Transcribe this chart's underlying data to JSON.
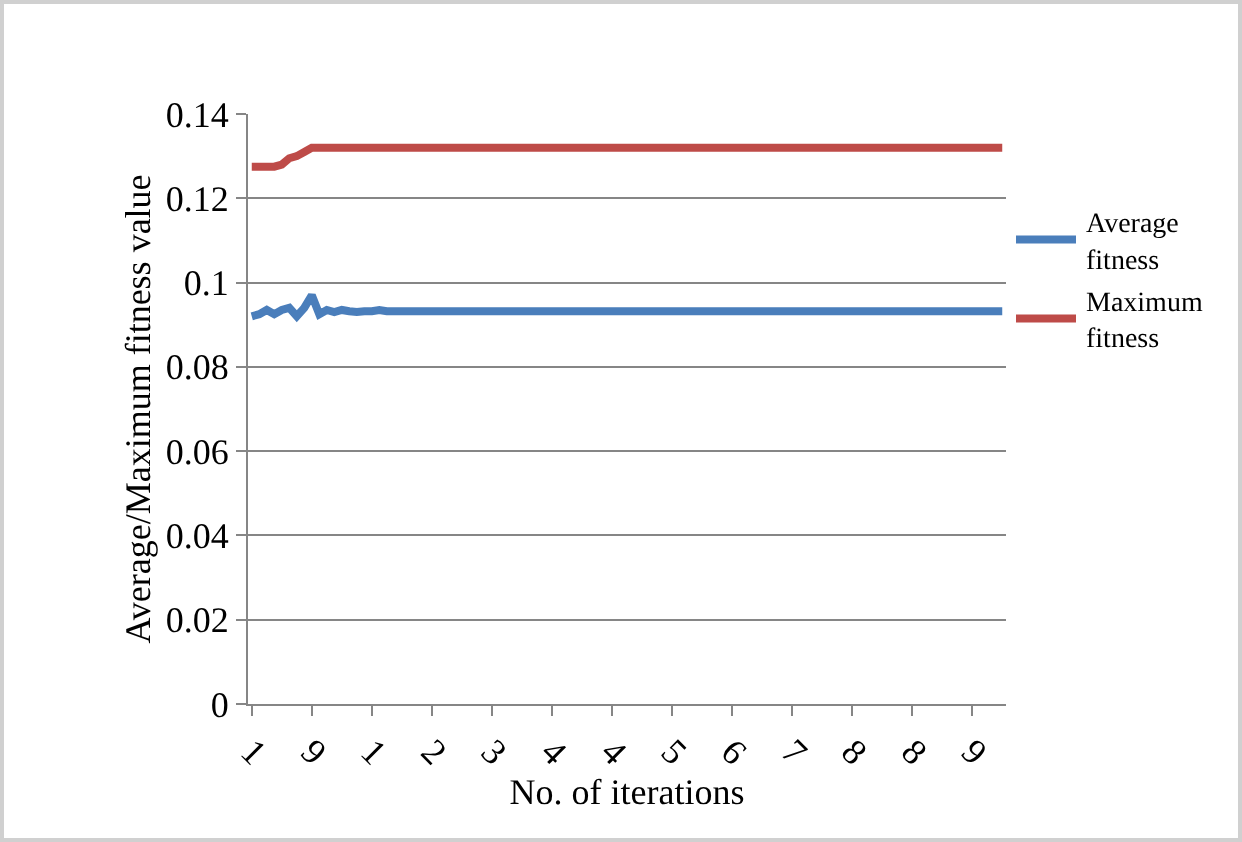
{
  "chart_data": {
    "type": "line",
    "xlabel": "No. of iterations",
    "ylabel": "Average/Maximum fitness value",
    "categories": [
      "1",
      null,
      null,
      null,
      null,
      null,
      null,
      null,
      "9",
      null,
      null,
      null,
      null,
      null,
      null,
      null,
      "1",
      null,
      null,
      null,
      null,
      null,
      null,
      null,
      "2",
      null,
      null,
      null,
      null,
      null,
      null,
      null,
      "3",
      null,
      null,
      null,
      null,
      null,
      null,
      null,
      "4",
      null,
      null,
      null,
      null,
      null,
      null,
      null,
      "4",
      null,
      null,
      null,
      null,
      null,
      null,
      null,
      "5",
      null,
      null,
      null,
      null,
      null,
      null,
      null,
      "6",
      null,
      null,
      null,
      null,
      null,
      null,
      null,
      "7",
      null,
      null,
      null,
      null,
      null,
      null,
      null,
      "8",
      null,
      null,
      null,
      null,
      null,
      null,
      null,
      "8",
      null,
      null,
      null,
      null,
      null,
      null,
      null,
      "9",
      null,
      null,
      null,
      null
    ],
    "ylim": [
      0,
      0.14
    ],
    "yticks": [
      0,
      0.02,
      0.04,
      0.06,
      0.08,
      0.1,
      0.12,
      0.14
    ],
    "grid": "y",
    "legend": "right",
    "marker": "none",
    "line_style": "solid",
    "series": [
      {
        "name": "Average fitness",
        "color": "#4a7ebb",
        "values": [
          0.092,
          0.0925,
          0.0935,
          0.0925,
          0.0935,
          0.094,
          0.092,
          0.094,
          0.097,
          0.0925,
          0.0935,
          0.093,
          0.0935,
          0.0932,
          0.093,
          0.0932,
          0.0932,
          0.0935,
          0.0932,
          0.0932,
          0.0932,
          0.0932,
          0.0932,
          0.0932,
          0.0932,
          0.0932,
          0.0932,
          0.0932,
          0.0932,
          0.0932,
          0.0932,
          0.0932,
          0.0932,
          0.0932,
          0.0932,
          0.0932,
          0.0932,
          0.0932,
          0.0932,
          0.0932,
          0.0932,
          0.0932,
          0.0932,
          0.0932,
          0.0932,
          0.0932,
          0.0932,
          0.0932,
          0.0932,
          0.0932,
          0.0932,
          0.0932,
          0.0932,
          0.0932,
          0.0932,
          0.0932,
          0.0932,
          0.0932,
          0.0932,
          0.0932,
          0.0932,
          0.0932,
          0.0932,
          0.0932,
          0.0932,
          0.0932,
          0.0932,
          0.0932,
          0.0932,
          0.0932,
          0.0932,
          0.0932,
          0.0932,
          0.0932,
          0.0932,
          0.0932,
          0.0932,
          0.0932,
          0.0932,
          0.0932,
          0.0932,
          0.0932,
          0.0932,
          0.0932,
          0.0932,
          0.0932,
          0.0932,
          0.0932,
          0.0932,
          0.0932,
          0.0932,
          0.0932,
          0.0932,
          0.0932,
          0.0932,
          0.0932,
          0.0932,
          0.0932,
          0.0932,
          0.0932,
          0.0932
        ]
      },
      {
        "name": "Maximum fitness",
        "color": "#be4b48",
        "values": [
          0.1275,
          0.1275,
          0.1275,
          0.1275,
          0.128,
          0.1295,
          0.13,
          0.131,
          0.132,
          0.132,
          0.132,
          0.132,
          0.132,
          0.132,
          0.132,
          0.132,
          0.132,
          0.132,
          0.132,
          0.132,
          0.132,
          0.132,
          0.132,
          0.132,
          0.132,
          0.132,
          0.132,
          0.132,
          0.132,
          0.132,
          0.132,
          0.132,
          0.132,
          0.132,
          0.132,
          0.132,
          0.132,
          0.132,
          0.132,
          0.132,
          0.132,
          0.132,
          0.132,
          0.132,
          0.132,
          0.132,
          0.132,
          0.132,
          0.132,
          0.132,
          0.132,
          0.132,
          0.132,
          0.132,
          0.132,
          0.132,
          0.132,
          0.132,
          0.132,
          0.132,
          0.132,
          0.132,
          0.132,
          0.132,
          0.132,
          0.132,
          0.132,
          0.132,
          0.132,
          0.132,
          0.132,
          0.132,
          0.132,
          0.132,
          0.132,
          0.132,
          0.132,
          0.132,
          0.132,
          0.132,
          0.132,
          0.132,
          0.132,
          0.132,
          0.132,
          0.132,
          0.132,
          0.132,
          0.132,
          0.132,
          0.132,
          0.132,
          0.132,
          0.132,
          0.132,
          0.132,
          0.132,
          0.132,
          0.132,
          0.132,
          0.132
        ]
      }
    ]
  }
}
